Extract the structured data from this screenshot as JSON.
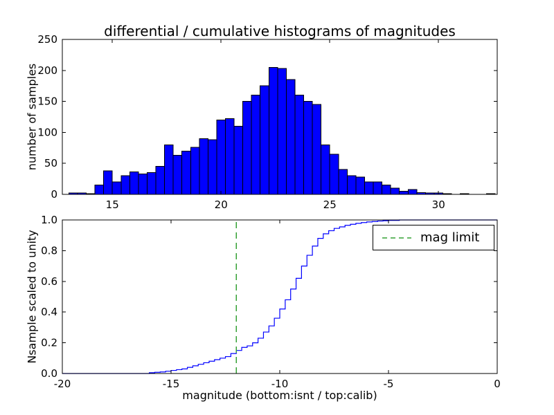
{
  "chart_data": [
    {
      "type": "bar",
      "subtype": "histogram",
      "title": "differential / cumulative histograms of magnitudes",
      "ylabel": "number of samples",
      "xlabel": "",
      "bin_start": 13.0,
      "bin_width": 0.4,
      "values": [
        2,
        2,
        1,
        15,
        38,
        20,
        30,
        36,
        33,
        35,
        45,
        80,
        63,
        70,
        76,
        90,
        88,
        120,
        122,
        110,
        150,
        160,
        175,
        205,
        203,
        185,
        160,
        150,
        145,
        80,
        65,
        40,
        30,
        28,
        20,
        20,
        15,
        10,
        5,
        8,
        3,
        2,
        2,
        1,
        0,
        1,
        0,
        0,
        1
      ],
      "xlim": [
        12.7,
        32.7
      ],
      "ylim": [
        0,
        250
      ],
      "xticks": [
        15,
        20,
        25,
        30
      ],
      "xticklabels": [
        "15",
        "20",
        "25",
        "30"
      ],
      "yticks": [
        0,
        50,
        100,
        150,
        200,
        250
      ],
      "yticklabels": [
        "0",
        "50",
        "100",
        "150",
        "200",
        "250"
      ],
      "bar_color": "#0000ff",
      "edge_color": "#000000",
      "grid": false,
      "legend": null
    },
    {
      "type": "line",
      "subtype": "step-cdf",
      "title": "",
      "ylabel": "Nsample scaled to unity",
      "xlabel": "magnitude (bottom:isnt / top:calib)",
      "x": [
        -16.0,
        -15.75,
        -15.5,
        -15.25,
        -15.0,
        -14.75,
        -14.5,
        -14.25,
        -14.0,
        -13.75,
        -13.5,
        -13.25,
        -13.0,
        -12.75,
        -12.5,
        -12.25,
        -12.0,
        -11.75,
        -11.5,
        -11.25,
        -11.0,
        -10.75,
        -10.5,
        -10.25,
        -10.0,
        -9.75,
        -9.5,
        -9.25,
        -9.0,
        -8.75,
        -8.5,
        -8.25,
        -8.0,
        -7.75,
        -7.5,
        -7.25,
        -7.0,
        -6.75,
        -6.5,
        -6.25,
        -6.0,
        -5.75,
        -5.5,
        -5.25,
        -5.0,
        -4.5
      ],
      "y": [
        0.005,
        0.008,
        0.01,
        0.015,
        0.02,
        0.025,
        0.03,
        0.04,
        0.05,
        0.06,
        0.07,
        0.08,
        0.09,
        0.1,
        0.11,
        0.13,
        0.15,
        0.17,
        0.18,
        0.2,
        0.23,
        0.27,
        0.31,
        0.36,
        0.42,
        0.48,
        0.55,
        0.62,
        0.7,
        0.77,
        0.83,
        0.88,
        0.91,
        0.93,
        0.945,
        0.955,
        0.965,
        0.972,
        0.978,
        0.983,
        0.987,
        0.99,
        0.993,
        0.995,
        0.997,
        1.0
      ],
      "xlim": [
        -20,
        0
      ],
      "ylim": [
        0.0,
        1.0
      ],
      "xticks": [
        -20,
        -15,
        -10,
        -5,
        0
      ],
      "xticklabels": [
        "-20",
        "-15",
        "-10",
        "-5",
        "0"
      ],
      "yticks": [
        0,
        0.2,
        0.4,
        0.6,
        0.8,
        1
      ],
      "yticklabels": [
        "0.0",
        "0.2",
        "0.4",
        "0.6",
        "0.8",
        "1.0"
      ],
      "line_color": "#0000ff",
      "vline": {
        "x": -12,
        "color": "#33a033",
        "style": "dashed",
        "label": "mag limit"
      },
      "legend": {
        "position": "upper right",
        "entries": [
          "mag limit"
        ]
      },
      "grid": false
    }
  ]
}
